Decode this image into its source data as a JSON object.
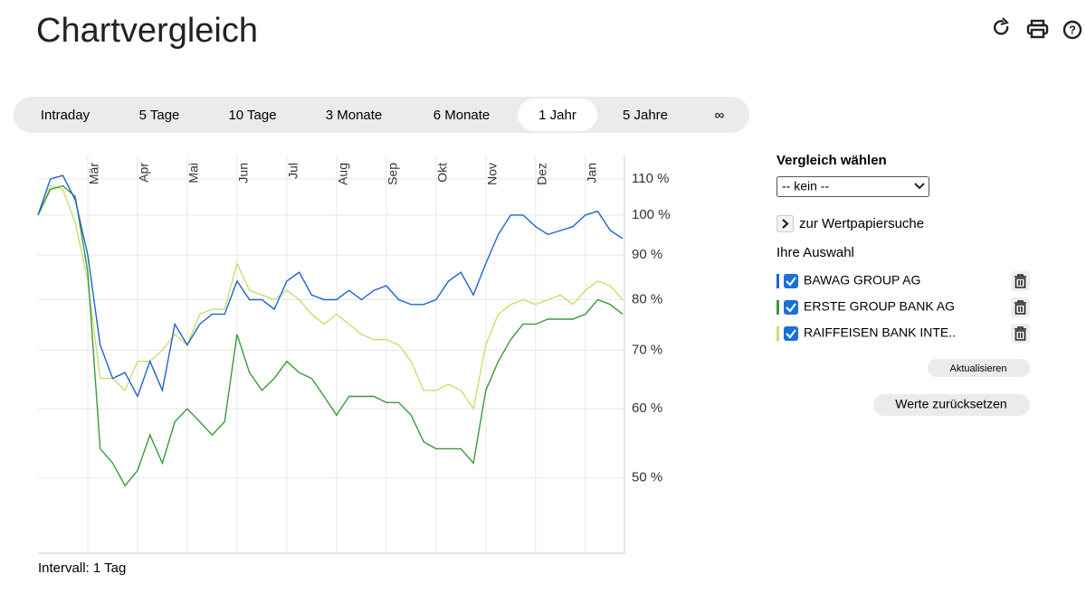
{
  "header": {
    "title": "Chartvergleich"
  },
  "tabs": {
    "items": [
      "Intraday",
      "5 Tage",
      "10 Tage",
      "3 Monate",
      "6 Monate",
      "1 Jahr",
      "5 Jahre",
      "∞"
    ],
    "selected": 5
  },
  "chart_data": {
    "type": "line",
    "log_scale": true,
    "grid": true,
    "note": "Intervall: 1 Tag",
    "categories": [
      null,
      null,
      null,
      null,
      "Mär",
      null,
      null,
      null,
      "Apr",
      null,
      null,
      null,
      "Mai",
      null,
      null,
      null,
      "Jun",
      null,
      null,
      null,
      "Jul",
      null,
      null,
      null,
      "Aug",
      null,
      null,
      null,
      "Sep",
      null,
      null,
      null,
      "Okt",
      null,
      null,
      null,
      "Nov",
      null,
      null,
      null,
      "Dez",
      null,
      null,
      null,
      "Jan",
      null,
      null,
      null
    ],
    "ylim": [
      41,
      117
    ],
    "yticks": [
      {
        "value": 50,
        "label": "50 %"
      },
      {
        "value": 60,
        "label": "60 %"
      },
      {
        "value": 70,
        "label": "70 %"
      },
      {
        "value": 80,
        "label": "80 %"
      },
      {
        "value": 90,
        "label": "90 %"
      },
      {
        "value": 100,
        "label": "100 %"
      },
      {
        "value": 110,
        "label": "110 %"
      }
    ],
    "series": [
      {
        "name": "BAWAG GROUP AG",
        "color": "#1f64c8",
        "values": [
          100,
          110,
          111,
          104,
          90,
          71,
          65,
          66,
          62,
          68,
          63,
          75,
          71,
          75,
          77,
          77,
          84,
          80,
          80,
          78,
          84,
          86,
          81,
          80,
          80,
          82,
          80,
          82,
          83,
          80,
          79,
          79,
          80,
          84,
          86,
          81,
          88,
          95,
          100,
          100,
          97,
          95,
          96,
          97,
          100,
          101,
          96,
          94
        ]
      },
      {
        "name": "ERSTE GROUP BANK AG",
        "color": "#3a9a3a",
        "values": [
          100,
          107,
          108,
          105,
          86,
          54,
          52,
          49,
          51,
          56,
          52,
          58,
          60,
          58,
          56,
          58,
          73,
          66,
          63,
          65,
          68,
          66,
          65,
          62,
          59,
          62,
          62,
          62,
          61,
          61,
          59,
          55,
          54,
          54,
          54,
          52,
          63,
          68,
          72,
          75,
          75,
          76,
          76,
          76,
          77,
          80,
          79,
          77
        ]
      },
      {
        "name": "RAIFFEISEN BANK INTE..",
        "color": "#c6e070",
        "values": [
          100,
          108,
          107,
          98,
          84,
          65,
          65,
          63,
          68,
          68,
          70,
          73,
          71,
          77,
          78,
          78,
          88,
          82,
          81,
          80,
          82,
          80,
          77,
          75,
          77,
          75,
          73,
          72,
          72,
          71,
          68,
          63,
          63,
          64,
          63,
          60,
          71,
          77,
          79,
          80,
          79,
          80,
          81,
          79,
          82,
          84,
          83,
          80
        ]
      }
    ]
  },
  "sidebar": {
    "compare_label": "Vergleich wählen",
    "select_value": "-- kein --",
    "search_link": "zur Wertpapiersuche",
    "selection_label": "Ihre Auswahl",
    "update_button": "Aktualisieren",
    "reset_button": "Werte zurücksetzen"
  }
}
